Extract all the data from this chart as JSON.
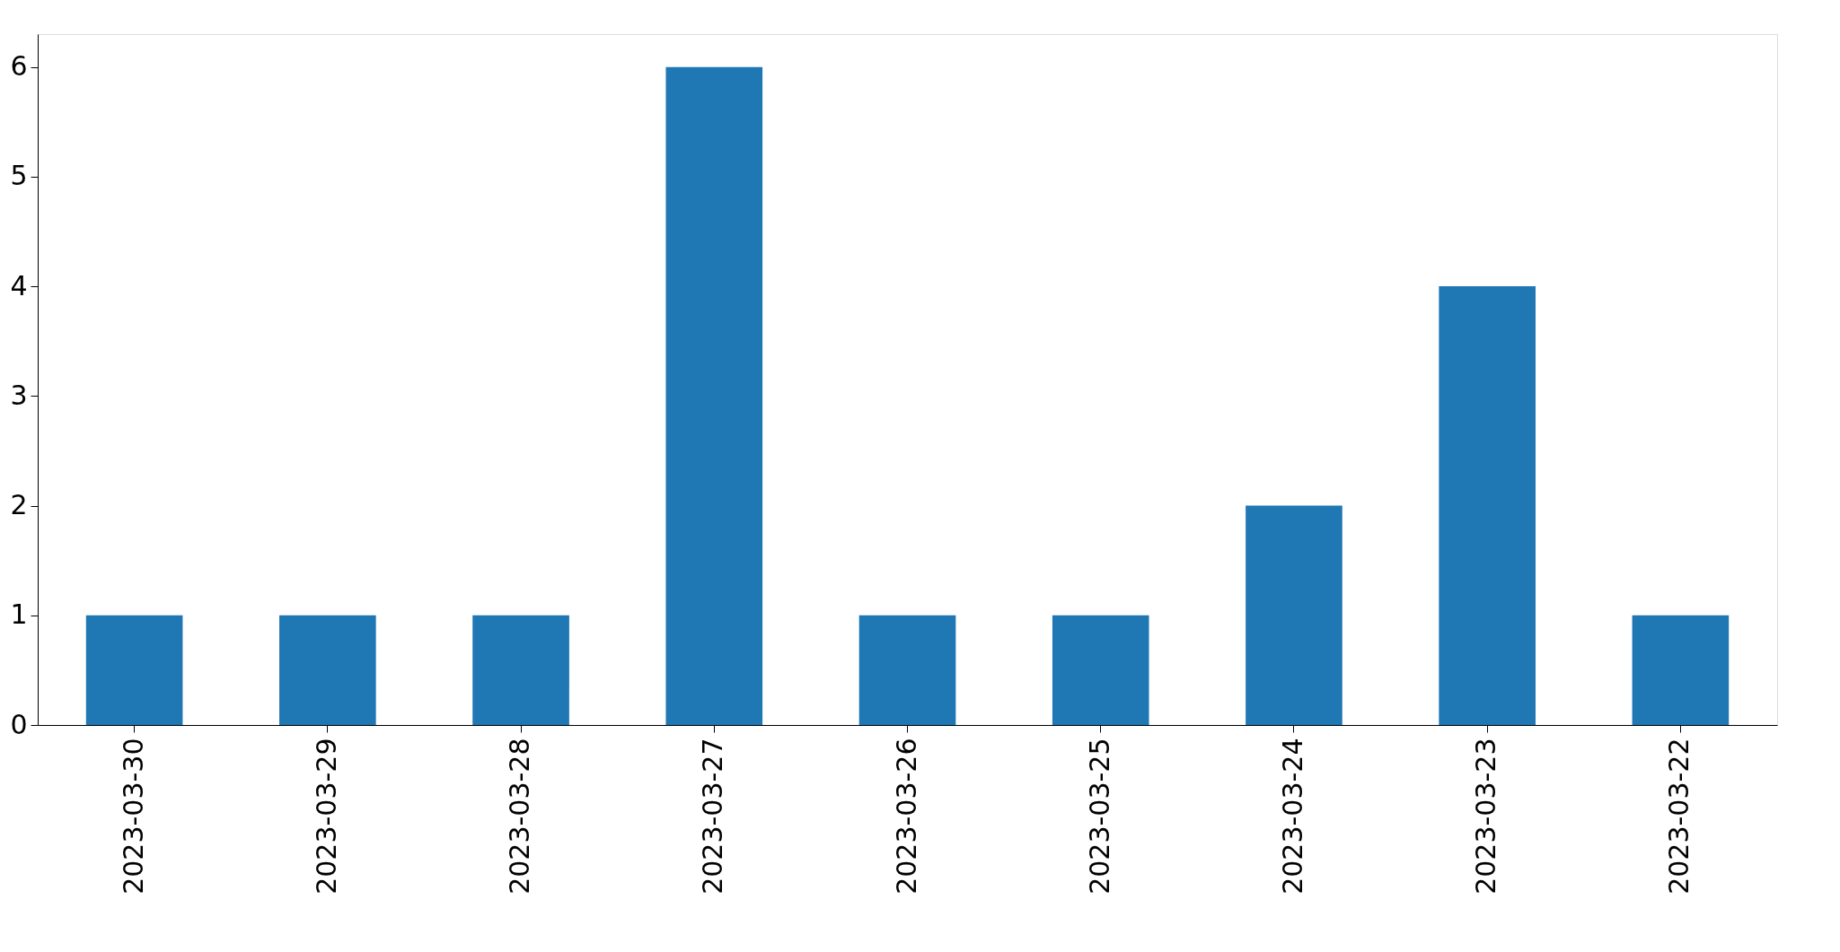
{
  "chart_data": {
    "type": "bar",
    "categories": [
      "2023-03-30",
      "2023-03-29",
      "2023-03-28",
      "2023-03-27",
      "2023-03-26",
      "2023-03-25",
      "2023-03-24",
      "2023-03-23",
      "2023-03-22"
    ],
    "values": [
      1,
      1,
      1,
      6,
      1,
      1,
      2,
      4,
      1
    ],
    "color": "#1f77b4",
    "ylim": [
      0,
      6.3
    ],
    "yticks": [
      0,
      1,
      2,
      3,
      4,
      5,
      6
    ],
    "grid": false
  }
}
